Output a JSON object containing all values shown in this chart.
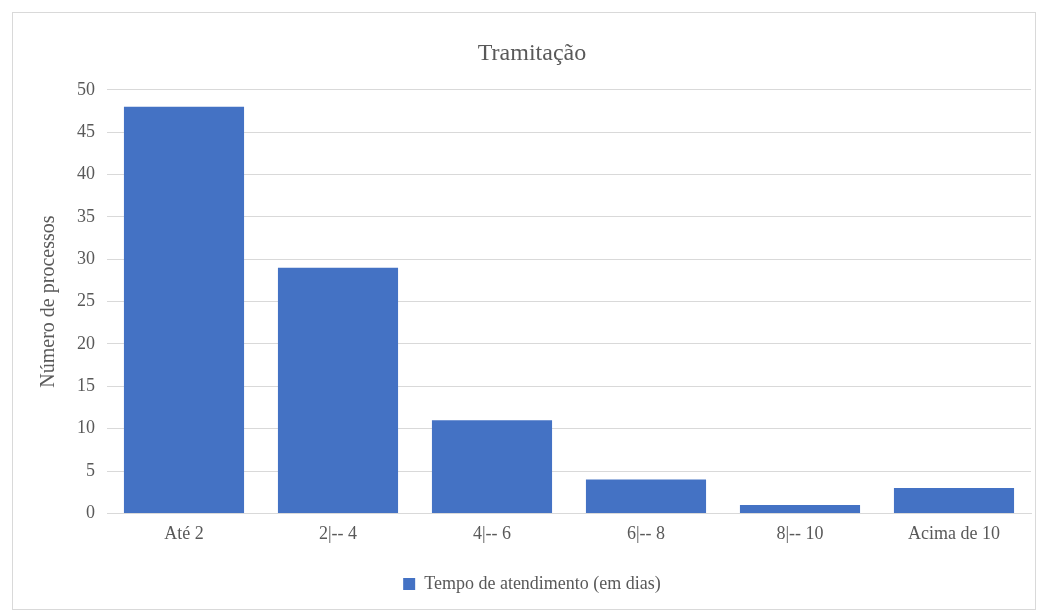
{
  "chart_data": {
    "type": "bar",
    "title": "Tramitação",
    "ylabel": "Número de processos",
    "categories": [
      "Até 2",
      "2|-- 4",
      "4|-- 6",
      "6|-- 8",
      "8|-- 10",
      "Acima de 10"
    ],
    "series": [
      {
        "name": "Tempo de atendimento (em dias)",
        "color": "#4472c4",
        "values": [
          48,
          29,
          11,
          4,
          1,
          3
        ]
      }
    ],
    "ylim": [
      0,
      50
    ],
    "yticks": [
      0,
      5,
      10,
      15,
      20,
      25,
      30,
      35,
      40,
      45,
      50
    ],
    "grid": "y",
    "legend": "bottom"
  }
}
